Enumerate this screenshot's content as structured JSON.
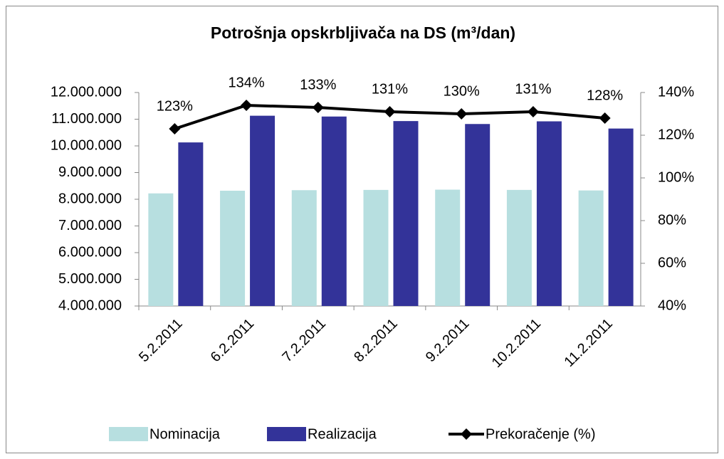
{
  "chart_data": {
    "type": "bar-line",
    "title": "Potrošnja opskrbljivača na DS (m³/dan)",
    "categories": [
      "5.2.2011",
      "6.2.2011",
      "7.2.2011",
      "8.2.2011",
      "9.2.2011",
      "10.2.2011",
      "11.2.2011"
    ],
    "series": [
      {
        "name": "Nominacija",
        "color": "#b7dfe0",
        "type": "bar",
        "values": [
          8220000,
          8320000,
          8340000,
          8350000,
          8360000,
          8350000,
          8330000
        ]
      },
      {
        "name": "Realizacija",
        "color": "#333399",
        "type": "bar",
        "values": [
          10130000,
          11130000,
          11100000,
          10930000,
          10820000,
          10920000,
          10650000
        ]
      },
      {
        "name": "Prekoračenje (%)",
        "color": "#000000",
        "type": "line",
        "axis": "y2",
        "values": [
          123,
          134,
          133,
          131,
          130,
          131,
          128
        ],
        "value_labels": [
          "123%",
          "134%",
          "133%",
          "131%",
          "130%",
          "131%",
          "128%"
        ]
      }
    ],
    "ylim": [
      4000000,
      12000000
    ],
    "yticks": [
      {
        "value": 4000000,
        "label": "4.000.000"
      },
      {
        "value": 5000000,
        "label": "5.000.000"
      },
      {
        "value": 6000000,
        "label": "6.000.000"
      },
      {
        "value": 7000000,
        "label": "7.000.000"
      },
      {
        "value": 8000000,
        "label": "8.000.000"
      },
      {
        "value": 9000000,
        "label": "9.000.000"
      },
      {
        "value": 10000000,
        "label": "10.000.000"
      },
      {
        "value": 11000000,
        "label": "11.000.000"
      },
      {
        "value": 12000000,
        "label": "12.000.000"
      }
    ],
    "y2lim": [
      40,
      140
    ],
    "y2ticks": [
      {
        "value": 40,
        "label": "40%"
      },
      {
        "value": 60,
        "label": "60%"
      },
      {
        "value": 80,
        "label": "80%"
      },
      {
        "value": 100,
        "label": "100%"
      },
      {
        "value": 120,
        "label": "120%"
      },
      {
        "value": 140,
        "label": "140%"
      }
    ],
    "legend": "bottom"
  }
}
